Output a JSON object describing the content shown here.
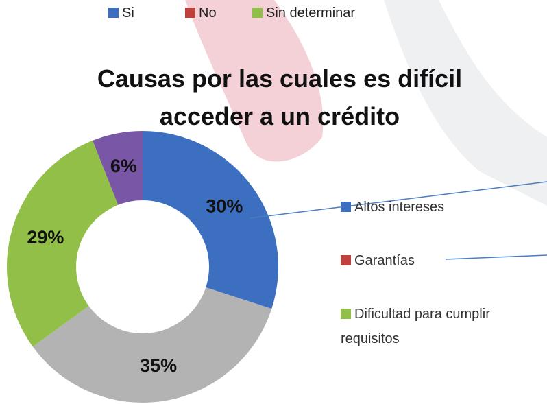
{
  "top_legend": [
    {
      "name": "Si",
      "color": "#3d6fc0"
    },
    {
      "name": "No",
      "color": "#c0403c"
    },
    {
      "name": "Sin determinar",
      "color": "#92bf48"
    }
  ],
  "chart_data": {
    "type": "donut",
    "title": "Causas por las cuales es difícil acceder a un crédito",
    "values": [
      30,
      35,
      29,
      6
    ],
    "value_labels": [
      "30%",
      "35%",
      "29%",
      "6%"
    ],
    "colors": [
      "#3d6fc0",
      "#b3b3b3",
      "#92bf48",
      "#7a56a6"
    ],
    "legend": [
      {
        "name": "Altos intereses",
        "color": "#3d6fc0"
      },
      {
        "name": "Garantías",
        "color": "#c0403c"
      },
      {
        "name": "Dificultad para cumplir requisitos",
        "color": "#92bf48"
      }
    ]
  }
}
